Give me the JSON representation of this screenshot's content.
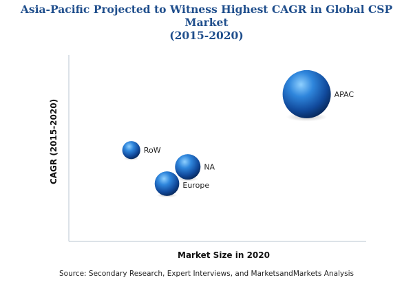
{
  "chart_data": {
    "type": "scatter",
    "title": "Asia-Pacific Projected to Witness Highest CAGR in Global CSP Market",
    "subtitle": "(2015-2020)",
    "xlabel": "Market Size in 2020",
    "ylabel": "CAGR (2015-2020)",
    "xlim": [
      0,
      100
    ],
    "ylim": [
      0,
      100
    ],
    "grid": false,
    "legend": "none",
    "points": [
      {
        "label": "APAC",
        "x": 80,
        "y": 79,
        "size": 100
      },
      {
        "label": "RoW",
        "x": 21,
        "y": 49,
        "size": 14
      },
      {
        "label": "NA",
        "x": 40,
        "y": 40,
        "size": 28
      },
      {
        "label": "Europe",
        "x": 33,
        "y": 31,
        "size": 26
      }
    ]
  },
  "source": "Source: Secondary Research, Expert Interviews, and MarketsandMarkets Analysis",
  "colors": {
    "bubble_light": "#7fc3f5",
    "bubble_mid": "#1e6fc8",
    "bubble_dark": "#0b2f6b",
    "title": "#1f4e8c",
    "axis": "#b8c4d0"
  }
}
